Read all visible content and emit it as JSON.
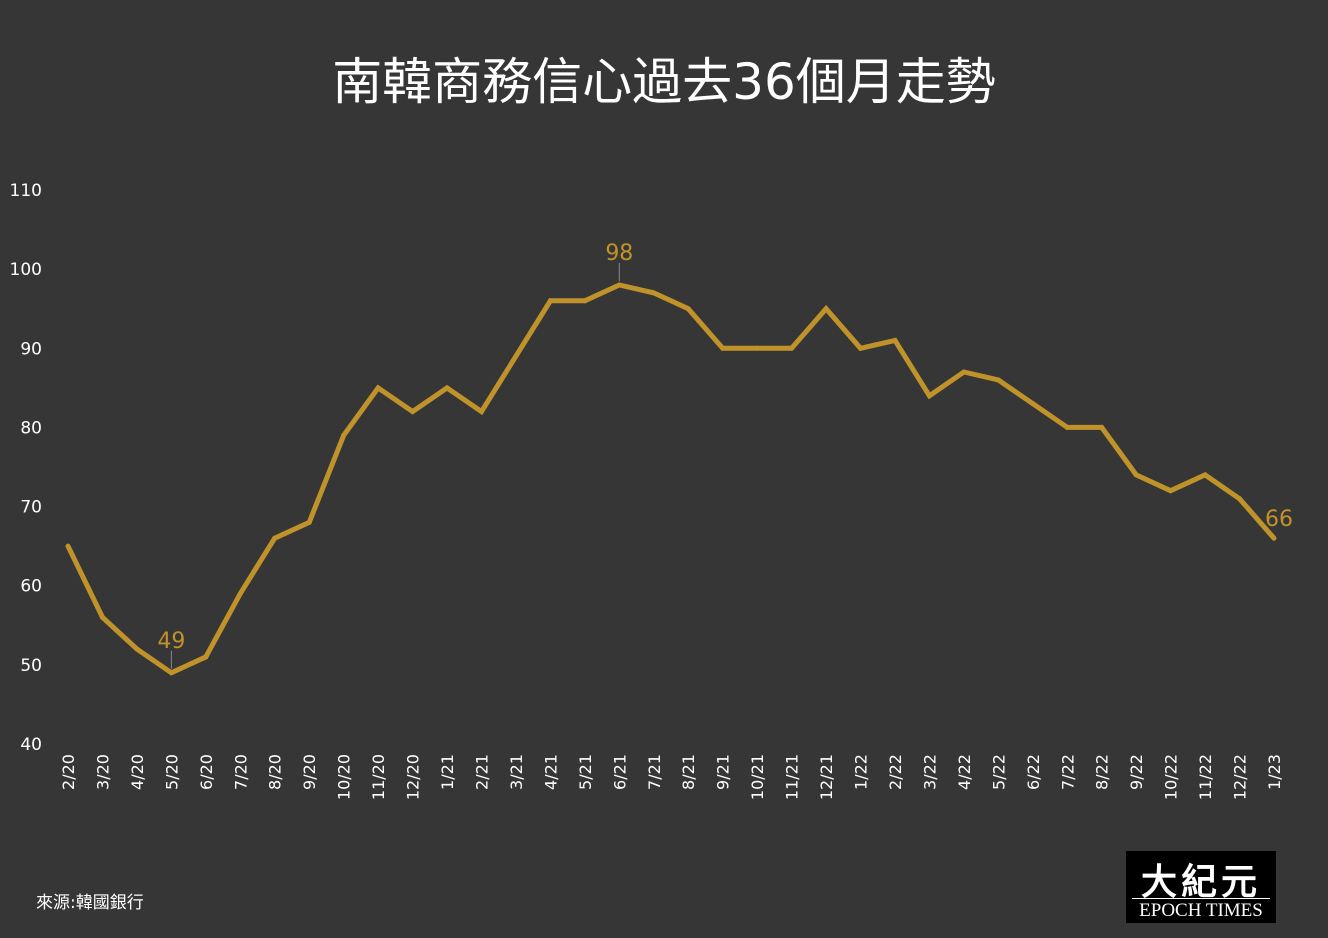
{
  "title": "南韓商務信心過去36個月走勢",
  "source": "來源:韓國銀行",
  "logo": {
    "chinese": "大紀元",
    "english": "EPOCH TIMES"
  },
  "colors": {
    "background": "#363636",
    "line": "#c0932a",
    "text": "#ffffff"
  },
  "chart_data": {
    "type": "line",
    "title": "南韓商務信心過去36個月走勢",
    "xlabel": "",
    "ylabel": "",
    "ylim": [
      40,
      110
    ],
    "yticks": [
      40,
      50,
      60,
      70,
      80,
      90,
      100,
      110
    ],
    "grid": false,
    "legend": "none",
    "categories": [
      "2/20",
      "3/20",
      "4/20",
      "5/20",
      "6/20",
      "7/20",
      "8/20",
      "9/20",
      "10/20",
      "11/20",
      "12/20",
      "1/21",
      "2/21",
      "3/21",
      "4/21",
      "5/21",
      "6/21",
      "7/21",
      "8/21",
      "9/21",
      "10/21",
      "11/21",
      "12/21",
      "1/22",
      "2/22",
      "3/22",
      "4/22",
      "5/22",
      "6/22",
      "7/22",
      "8/22",
      "9/22",
      "10/22",
      "11/22",
      "12/22",
      "1/23"
    ],
    "series": [
      {
        "values": [
          65,
          56,
          52,
          49,
          51,
          59,
          66,
          68,
          79,
          85,
          82,
          85,
          82,
          89,
          96,
          96,
          98,
          97,
          95,
          90,
          90,
          90,
          95,
          90,
          91,
          84,
          87,
          86,
          83,
          80,
          80,
          74,
          72,
          74,
          71,
          66
        ]
      }
    ],
    "annotations": [
      {
        "category": "5/20",
        "value": 49,
        "label": "49"
      },
      {
        "category": "6/21",
        "value": 98,
        "label": "98"
      },
      {
        "category": "1/23",
        "value": 66,
        "label": "66"
      }
    ]
  }
}
